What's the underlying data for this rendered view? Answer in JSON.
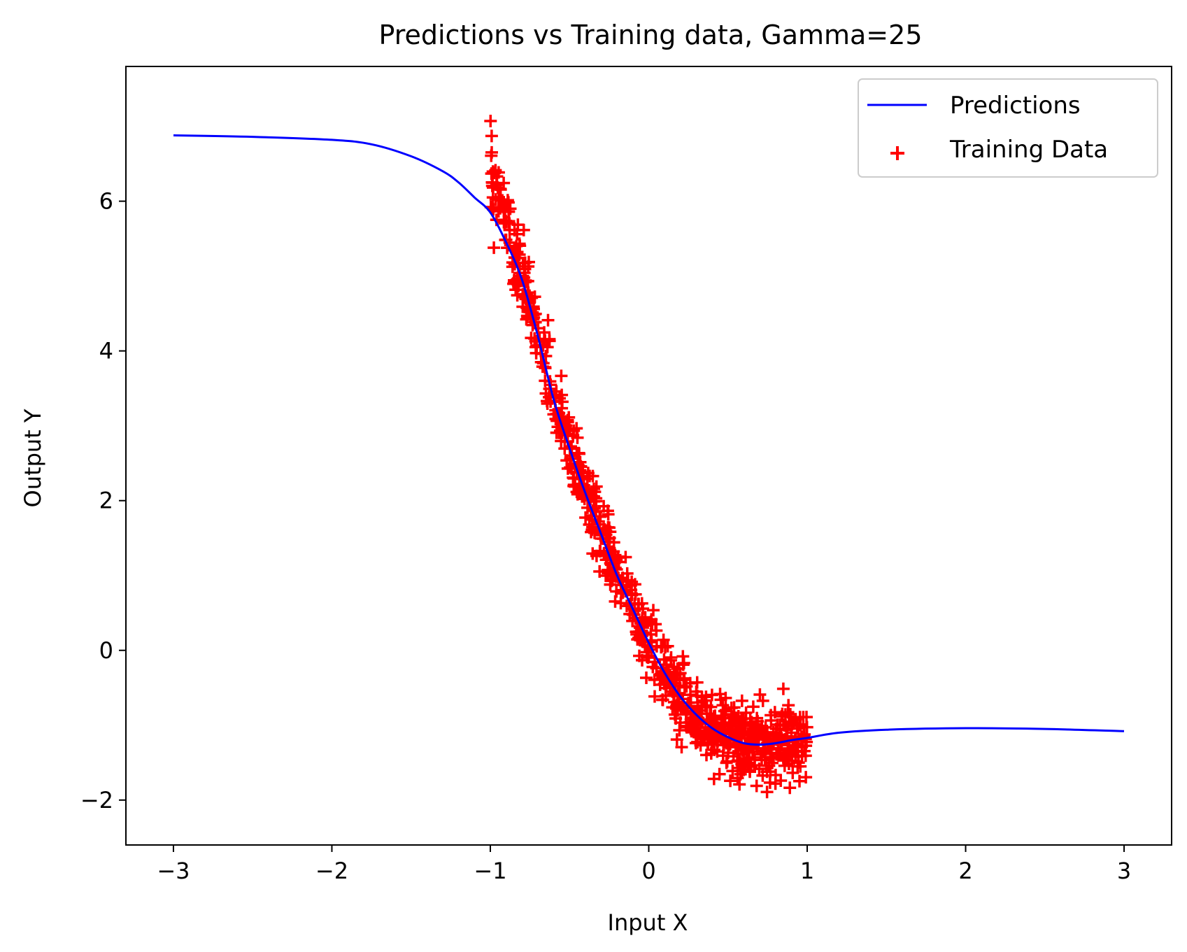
{
  "chart_data": {
    "type": "line+scatter",
    "title": "Predictions vs Training data, Gamma=25",
    "xlabel": "Input X",
    "ylabel": "Output Y",
    "xlim": [
      -3.3,
      3.3
    ],
    "ylim": [
      -2.6,
      7.8
    ],
    "x_ticks": [
      -3,
      -2,
      -1,
      0,
      1,
      2,
      3
    ],
    "x_tick_labels": [
      "−3",
      "−2",
      "−1",
      "0",
      "1",
      "2",
      "3"
    ],
    "y_ticks": [
      -2,
      0,
      2,
      4,
      6
    ],
    "y_tick_labels": [
      "−2",
      "0",
      "2",
      "4",
      "6"
    ],
    "grid": false,
    "legend_position": "top-right",
    "series": [
      {
        "name": "Predictions",
        "kind": "line",
        "color": "#0000ff",
        "x": [
          -3.0,
          -2.5,
          -2.0,
          -1.75,
          -1.5,
          -1.3,
          -1.2,
          -1.1,
          -1.0,
          -0.9,
          -0.8,
          -0.7,
          -0.6,
          -0.5,
          -0.4,
          -0.3,
          -0.2,
          -0.1,
          0.0,
          0.1,
          0.2,
          0.3,
          0.4,
          0.5,
          0.6,
          0.7,
          0.8,
          0.9,
          1.0,
          1.2,
          1.5,
          2.0,
          2.5,
          3.0
        ],
        "y": [
          6.88,
          6.86,
          6.82,
          6.76,
          6.6,
          6.4,
          6.25,
          6.05,
          5.85,
          5.45,
          4.95,
          4.2,
          3.35,
          2.7,
          2.1,
          1.55,
          1.0,
          0.55,
          0.1,
          -0.3,
          -0.62,
          -0.86,
          -1.04,
          -1.16,
          -1.24,
          -1.26,
          -1.24,
          -1.2,
          -1.17,
          -1.1,
          -1.06,
          -1.04,
          -1.05,
          -1.08
        ]
      },
      {
        "name": "Training Data",
        "kind": "scatter",
        "marker": "+",
        "color": "#ff0000",
        "x_range": [
          -1.0,
          1.0
        ],
        "n_points": 900
      }
    ]
  }
}
